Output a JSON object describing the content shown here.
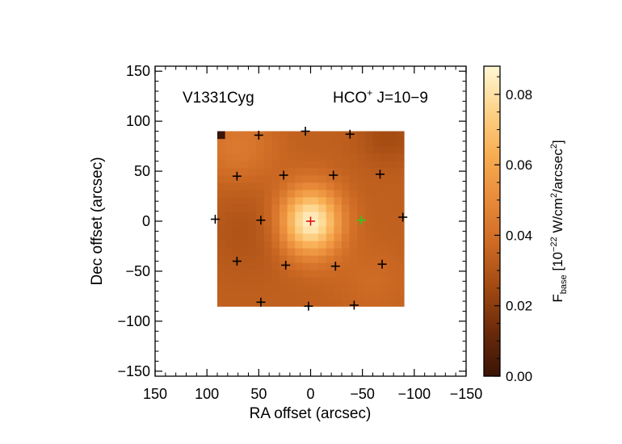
{
  "chart_data": {
    "type": "heatmap",
    "source_label": "V1331Cyg",
    "line_label": {
      "species": "HCO",
      "charge": "+",
      "transition": " J=10−9"
    },
    "xlabel": "RA offset (arcsec)",
    "ylabel": "Dec offset (arcsec)",
    "xlim": [
      150,
      -150
    ],
    "ylim": [
      -155,
      155
    ],
    "x_ticks": [
      150,
      100,
      50,
      0,
      -50,
      -100,
      -150
    ],
    "x_tick_labels": [
      "150",
      "100",
      "50",
      "0",
      "−50",
      "−100",
      "−150"
    ],
    "y_ticks": [
      150,
      100,
      50,
      0,
      -50,
      -100,
      -150
    ],
    "y_tick_labels": [
      "150",
      "100",
      "50",
      "0",
      "−50",
      "−100",
      "−150"
    ],
    "map_extent": {
      "ra": [
        90,
        -90
      ],
      "dec": [
        -85,
        90
      ]
    },
    "colorbar": {
      "label_main": "F",
      "label_sub": "base",
      "label_unit": {
        "open": " [10",
        "exp": "−22",
        "mid": " W/cm",
        "sq1": "2",
        "mid2": "/arcsec",
        "sq2": "2",
        "close": "]"
      },
      "range": [
        0.0,
        0.088
      ],
      "ticks": [
        0.0,
        0.02,
        0.04,
        0.06,
        0.08
      ],
      "tick_labels": [
        "0.00",
        "0.02",
        "0.04",
        "0.06",
        "0.08"
      ],
      "colormap": [
        "#3a1406",
        "#6a2a0a",
        "#a14912",
        "#cd6a24",
        "#e98b3a",
        "#f8ad52",
        "#fdd389",
        "#fff7d6"
      ]
    },
    "emission_peak": {
      "ra": 0,
      "dec": 0,
      "peak_value": 0.086
    },
    "background_level": 0.034,
    "masked_pixel": {
      "ra": 88,
      "dec": 88,
      "value": 0.0
    },
    "pointings": [
      {
        "ra": 50,
        "dec": 86
      },
      {
        "ra": 5,
        "dec": 90
      },
      {
        "ra": -38,
        "dec": 87
      },
      {
        "ra": 71,
        "dec": 45
      },
      {
        "ra": 26,
        "dec": 46
      },
      {
        "ra": -22,
        "dec": 46
      },
      {
        "ra": -67,
        "dec": 47
      },
      {
        "ra": 92,
        "dec": 2
      },
      {
        "ra": 48,
        "dec": 1
      },
      {
        "ra": -89,
        "dec": 4
      },
      {
        "ra": 71,
        "dec": -40
      },
      {
        "ra": 24,
        "dec": -44
      },
      {
        "ra": -24,
        "dec": -45
      },
      {
        "ra": -69,
        "dec": -43
      },
      {
        "ra": 48,
        "dec": -81
      },
      {
        "ra": 2,
        "dec": -85
      },
      {
        "ra": -42,
        "dec": -84
      }
    ],
    "center_marker": {
      "ra": 0,
      "dec": 0,
      "color": "#e01010"
    },
    "reference_marker": {
      "ra": -49,
      "dec": 1,
      "color": "#1ed21e"
    },
    "marker_color": "#000000"
  }
}
